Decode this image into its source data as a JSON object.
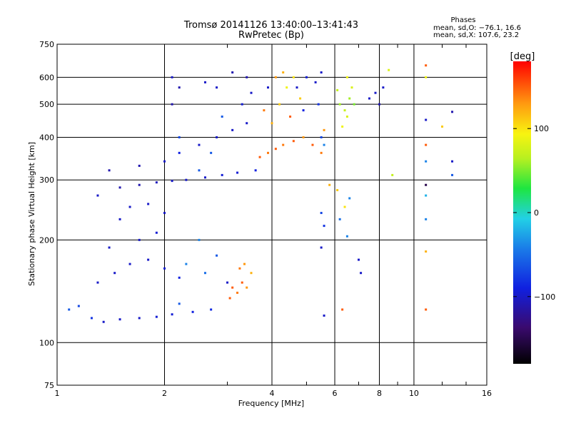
{
  "chart_data": {
    "type": "scatter",
    "title": "Tromsø 20141126 13:40:00–13:41:43",
    "subtitle": "RwPretec (Bp)",
    "xlabel": "Frequency [MHz]",
    "ylabel": "Stationary phase Virtual Height [km]",
    "x_scale": "log",
    "y_scale": "log",
    "xlim": [
      1,
      16
    ],
    "ylim": [
      75,
      750
    ],
    "x_ticks": [
      "1",
      "2",
      "4",
      "6",
      "8",
      "10",
      "16"
    ],
    "y_ticks": [
      "75",
      "100",
      "200",
      "300",
      "400",
      "500",
      "600",
      "750"
    ],
    "grid": true,
    "phase_stats": {
      "heading": "Phases",
      "line1": "mean, sd,O: −76.1, 16.6",
      "line2": "mean, sd,X: 107.6, 23.2"
    },
    "colorbar": {
      "label": "[deg]",
      "range": [
        -180,
        180
      ],
      "ticks": [
        "100",
        "0",
        "−100"
      ],
      "tick_values": [
        100,
        0,
        -100
      ]
    },
    "series": [
      {
        "points": [
          [
            1.08,
            125,
            -60
          ],
          [
            1.15,
            128,
            -70
          ],
          [
            1.25,
            118,
            -80
          ],
          [
            1.35,
            115,
            -100
          ],
          [
            1.5,
            117,
            -100
          ],
          [
            1.7,
            118,
            -100
          ],
          [
            1.9,
            119,
            -95
          ],
          [
            2.1,
            121,
            -95
          ],
          [
            2.4,
            123,
            -90
          ],
          [
            2.7,
            125,
            -85
          ],
          [
            1.3,
            150,
            -100
          ],
          [
            1.45,
            160,
            -100
          ],
          [
            1.6,
            170,
            -100
          ],
          [
            1.8,
            175,
            -100
          ],
          [
            2.0,
            165,
            -95
          ],
          [
            2.2,
            155,
            -90
          ],
          [
            1.4,
            190,
            -100
          ],
          [
            1.7,
            200,
            -100
          ],
          [
            1.9,
            210,
            -95
          ],
          [
            1.5,
            230,
            -100
          ],
          [
            1.6,
            250,
            -100
          ],
          [
            1.8,
            255,
            -100
          ],
          [
            2.0,
            240,
            -100
          ],
          [
            1.3,
            270,
            -100
          ],
          [
            1.5,
            285,
            -110
          ],
          [
            1.7,
            290,
            -110
          ],
          [
            1.9,
            295,
            -105
          ],
          [
            2.1,
            298,
            -100
          ],
          [
            2.3,
            300,
            -100
          ],
          [
            2.6,
            305,
            -100
          ],
          [
            2.9,
            310,
            -95
          ],
          [
            3.2,
            315,
            -95
          ],
          [
            3.6,
            320,
            -90
          ],
          [
            1.4,
            320,
            -110
          ],
          [
            1.7,
            330,
            -110
          ],
          [
            2.0,
            340,
            -100
          ],
          [
            2.2,
            360,
            -90
          ],
          [
            2.5,
            380,
            -100
          ],
          [
            2.8,
            400,
            -100
          ],
          [
            3.1,
            420,
            -100
          ],
          [
            3.4,
            440,
            -100
          ],
          [
            2.1,
            500,
            -110
          ],
          [
            2.2,
            560,
            -110
          ],
          [
            2.1,
            600,
            -100
          ],
          [
            2.6,
            580,
            -100
          ],
          [
            2.8,
            560,
            -100
          ],
          [
            3.1,
            620,
            -110
          ],
          [
            3.4,
            600,
            -110
          ],
          [
            3.5,
            540,
            -100
          ],
          [
            3.3,
            500,
            -95
          ],
          [
            2.9,
            460,
            -60
          ],
          [
            2.7,
            360,
            -60
          ],
          [
            2.5,
            320,
            -60
          ],
          [
            2.2,
            400,
            -70
          ],
          [
            2.3,
            170,
            -40
          ],
          [
            2.6,
            160,
            -50
          ],
          [
            2.8,
            180,
            -60
          ],
          [
            3.0,
            150,
            -100
          ],
          [
            2.2,
            130,
            -60
          ],
          [
            2.5,
            200,
            -40
          ],
          [
            3.05,
            135,
            150
          ],
          [
            3.2,
            140,
            140
          ],
          [
            3.3,
            150,
            150
          ],
          [
            3.4,
            145,
            130
          ],
          [
            3.5,
            160,
            120
          ],
          [
            3.1,
            145,
            150
          ],
          [
            3.25,
            165,
            140
          ],
          [
            3.35,
            170,
            130
          ],
          [
            3.7,
            350,
            150
          ],
          [
            3.9,
            360,
            140
          ],
          [
            4.1,
            370,
            150
          ],
          [
            4.3,
            380,
            140
          ],
          [
            4.6,
            390,
            150
          ],
          [
            4.9,
            400,
            130
          ],
          [
            5.2,
            380,
            150
          ],
          [
            5.5,
            360,
            140
          ],
          [
            5.6,
            420,
            130
          ],
          [
            4.0,
            440,
            120
          ],
          [
            4.2,
            500,
            110
          ],
          [
            4.4,
            560,
            90
          ],
          [
            4.6,
            600,
            100
          ],
          [
            4.3,
            620,
            120
          ],
          [
            4.8,
            520,
            110
          ],
          [
            3.8,
            480,
            140
          ],
          [
            4.1,
            600,
            130
          ],
          [
            4.5,
            460,
            150
          ],
          [
            3.9,
            560,
            -100
          ],
          [
            4.7,
            560,
            -100
          ],
          [
            5.0,
            600,
            -95
          ],
          [
            5.3,
            580,
            -100
          ],
          [
            5.5,
            620,
            -100
          ],
          [
            4.9,
            480,
            -90
          ],
          [
            5.4,
            500,
            -80
          ],
          [
            5.5,
            400,
            -70
          ],
          [
            5.6,
            380,
            -40
          ],
          [
            6.2,
            500,
            60
          ],
          [
            6.4,
            480,
            70
          ],
          [
            6.5,
            460,
            80
          ],
          [
            6.6,
            520,
            60
          ],
          [
            6.8,
            500,
            50
          ],
          [
            6.3,
            430,
            90
          ],
          [
            6.1,
            550,
            70
          ],
          [
            6.7,
            560,
            80
          ],
          [
            6.5,
            600,
            90
          ],
          [
            7.5,
            520,
            -100
          ],
          [
            7.8,
            540,
            -100
          ],
          [
            8.0,
            500,
            -110
          ],
          [
            8.2,
            560,
            -100
          ],
          [
            8.5,
            630,
            80
          ],
          [
            5.8,
            290,
            120
          ],
          [
            6.1,
            280,
            110
          ],
          [
            6.4,
            250,
            100
          ],
          [
            6.6,
            265,
            -40
          ],
          [
            6.5,
            205,
            -40
          ],
          [
            6.2,
            230,
            -50
          ],
          [
            5.5,
            240,
            -70
          ],
          [
            5.6,
            220,
            -80
          ],
          [
            5.5,
            190,
            -100
          ],
          [
            5.6,
            120,
            -100
          ],
          [
            6.3,
            125,
            150
          ],
          [
            7.1,
            160,
            -100
          ],
          [
            7.0,
            175,
            -100
          ],
          [
            8.7,
            310,
            70
          ],
          [
            10.8,
            650,
            150
          ],
          [
            10.8,
            600,
            90
          ],
          [
            10.8,
            450,
            -100
          ],
          [
            10.8,
            380,
            150
          ],
          [
            10.8,
            340,
            -40
          ],
          [
            10.8,
            290,
            -150
          ],
          [
            10.8,
            270,
            -20
          ],
          [
            10.8,
            230,
            -40
          ],
          [
            10.8,
            185,
            120
          ],
          [
            10.8,
            125,
            150
          ],
          [
            12.0,
            430,
            110
          ],
          [
            12.8,
            475,
            -110
          ],
          [
            12.8,
            340,
            -100
          ],
          [
            12.8,
            310,
            -60
          ]
        ]
      }
    ]
  }
}
